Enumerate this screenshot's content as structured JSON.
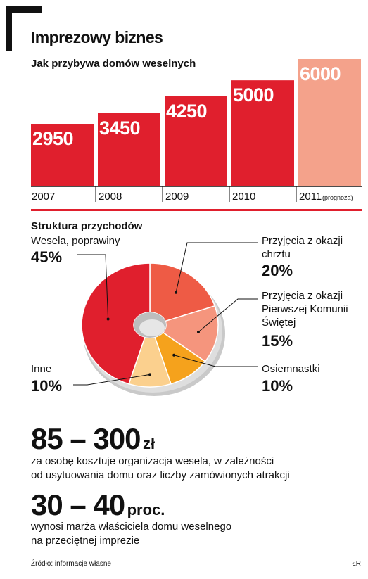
{
  "header": {
    "title": "Imprezowy biznes",
    "subtitle": "Jak przybywa domów weselnych"
  },
  "chart_data": [
    {
      "type": "bar",
      "title": "Jak przybywa domów weselnych",
      "categories": [
        "2007",
        "2008",
        "2009",
        "2010",
        "2011"
      ],
      "category_notes": [
        "",
        "",
        "",
        "",
        "(prognoza)"
      ],
      "values": [
        2950,
        3450,
        4250,
        5000,
        6000
      ],
      "colors": [
        "#e01f2d",
        "#e01f2d",
        "#e01f2d",
        "#e01f2d",
        "#f4a28b"
      ],
      "ylim": [
        0,
        6000
      ],
      "grid": false,
      "legend": "none"
    },
    {
      "type": "pie",
      "title": "Struktura przychodów",
      "slices": [
        {
          "label": "Wesela, poprawiny",
          "pct_label": "45%",
          "value": 45,
          "color": "#e01f2d"
        },
        {
          "label": "Przyjęcia z okazji chrztu",
          "label_lines": [
            "Przyjęcia z okazji",
            "chrztu"
          ],
          "pct_label": "20%",
          "value": 20,
          "color": "#ee5b45"
        },
        {
          "label": "Przyjęcia z okazji Pierwszej Komunii Świętej",
          "label_lines": [
            "Przyjęcia z okazji",
            "Pierwszej Komunii",
            "Świętej"
          ],
          "pct_label": "15%",
          "value": 15,
          "color": "#f5957d"
        },
        {
          "label": "Osiemnastki",
          "pct_label": "10%",
          "value": 10,
          "color": "#f5a21c"
        },
        {
          "label": "Inne",
          "pct_label": "10%",
          "value": 10,
          "color": "#fbd08e"
        }
      ],
      "legend": "callout labels around pie"
    }
  ],
  "stats": [
    {
      "value": "85 – 300",
      "unit": "zł",
      "description_lines": [
        "za osobę kosztuje organizacja wesela, w zależności",
        "od usytuowania domu oraz liczby zamówionych atrakcji"
      ]
    },
    {
      "value": "30 – 40",
      "unit": "proc.",
      "description_lines": [
        "wynosi marża właściciela domu weselnego",
        "na przeciętnej imprezie"
      ]
    }
  ],
  "footer": {
    "source": "Źródło: informacje własne",
    "initials": "ŁR"
  }
}
